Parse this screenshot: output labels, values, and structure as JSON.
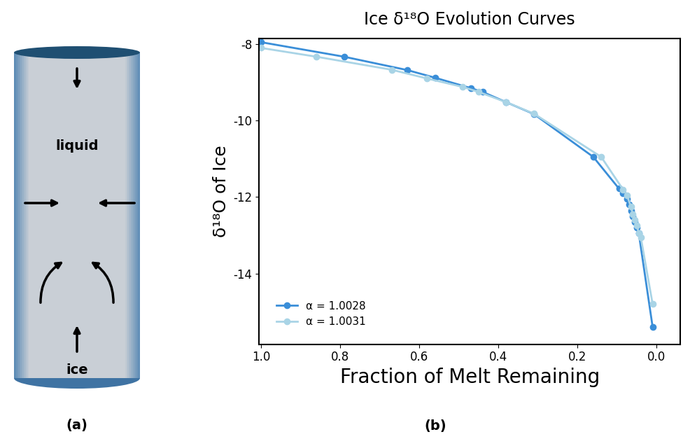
{
  "diagram": {
    "top_label": "liquid",
    "bottom_label": "ice",
    "caption": "(a)"
  },
  "chart_data": {
    "type": "line",
    "title": "Ice δ¹⁸O Evolution Curves",
    "x_label": "Fraction of Melt Remaining",
    "y_label": "δ¹⁸O of Ice",
    "annotations": [
      "(b)"
    ],
    "xlim": [
      1.005,
      -0.06
    ],
    "xticks": [
      1.0,
      0.8,
      0.6,
      0.4,
      0.2,
      0.0
    ],
    "ylim": [
      -15.85,
      -7.85
    ],
    "yticks": [
      -8,
      -10,
      -12,
      -14
    ],
    "grid": false,
    "legend": "lower left",
    "series": [
      {
        "name": "α = 1.0028",
        "color": "#3a8ed8",
        "marker": "o",
        "x": [
          1.0,
          0.79,
          0.63,
          0.56,
          0.47,
          0.44,
          0.38,
          0.31,
          0.16,
          0.095,
          0.085,
          0.075,
          0.07,
          0.065,
          0.06,
          0.055,
          0.05,
          0.045,
          0.01
        ],
        "values": [
          -7.95,
          -8.33,
          -8.68,
          -8.88,
          -9.15,
          -9.25,
          -9.52,
          -9.83,
          -10.95,
          -11.78,
          -11.9,
          -12.05,
          -12.2,
          -12.35,
          -12.5,
          -12.65,
          -12.8,
          -12.95,
          -15.4
        ]
      },
      {
        "name": "α = 1.0031",
        "color": "#a9d4e6",
        "marker": "o",
        "x": [
          1.0,
          0.86,
          0.67,
          0.58,
          0.49,
          0.45,
          0.38,
          0.31,
          0.14,
          0.085,
          0.075,
          0.065,
          0.06,
          0.055,
          0.05,
          0.045,
          0.04,
          0.01
        ],
        "values": [
          -8.1,
          -8.33,
          -8.67,
          -8.9,
          -9.12,
          -9.25,
          -9.52,
          -9.82,
          -10.95,
          -11.8,
          -11.95,
          -12.25,
          -12.45,
          -12.6,
          -12.75,
          -12.95,
          -13.05,
          -14.8
        ]
      }
    ]
  }
}
